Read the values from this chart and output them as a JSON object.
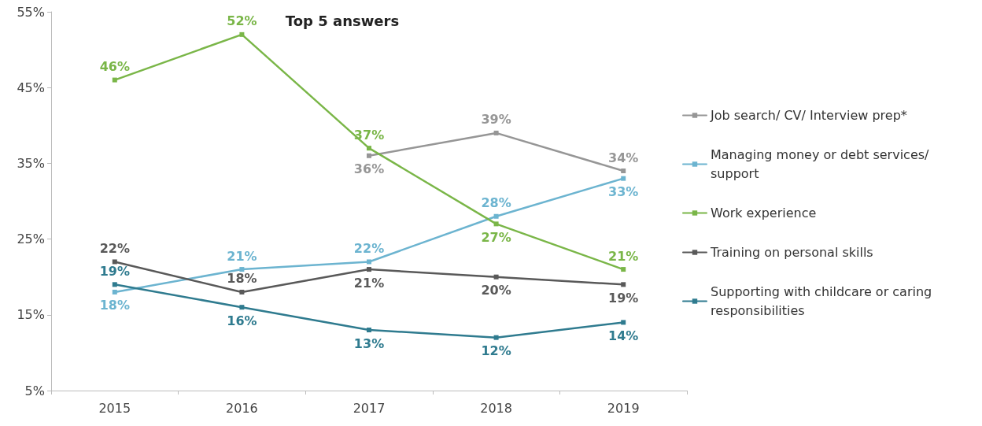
{
  "chart_data": {
    "type": "line",
    "title": "Top 5 answers",
    "categories": [
      "2015",
      "2016",
      "2017",
      "2018",
      "2019"
    ],
    "ylim": [
      5,
      55
    ],
    "yticks": [
      {
        "value": 5,
        "label": "5%"
      },
      {
        "value": 15,
        "label": "15%"
      },
      {
        "value": 25,
        "label": "25%"
      },
      {
        "value": 35,
        "label": "35%"
      },
      {
        "value": 45,
        "label": "45%"
      },
      {
        "value": 55,
        "label": "55%"
      }
    ],
    "grid": false,
    "legend": "right",
    "marker": "square",
    "line_style": "solid",
    "series": [
      {
        "name": "Job search/ CV/ Interview prep*",
        "color": "#969696",
        "values": [
          null,
          null,
          36,
          39,
          34
        ],
        "value_labels": [
          null,
          null,
          "36%",
          "39%",
          "34%"
        ]
      },
      {
        "name": "Managing money or debt services/ support",
        "color": "#6cb4d0",
        "values": [
          18,
          21,
          22,
          28,
          33
        ],
        "value_labels": [
          "18%",
          "21%",
          "22%",
          "28%",
          "33%"
        ]
      },
      {
        "name": "Work experience",
        "color": "#7ab648",
        "values": [
          46,
          52,
          37,
          27,
          21
        ],
        "value_labels": [
          "46%",
          "52%",
          "37%",
          "27%",
          "21%"
        ]
      },
      {
        "name": "Training on personal skills",
        "color": "#595959",
        "values": [
          22,
          18,
          21,
          20,
          19
        ],
        "value_labels": [
          "22%",
          "18%",
          "21%",
          "20%",
          "19%"
        ]
      },
      {
        "name": "Supporting with childcare or caring responsibilities",
        "color": "#2f7b8f",
        "values": [
          19,
          16,
          13,
          12,
          14
        ],
        "value_labels": [
          "19%",
          "16%",
          "13%",
          "12%",
          "14%"
        ]
      }
    ]
  }
}
